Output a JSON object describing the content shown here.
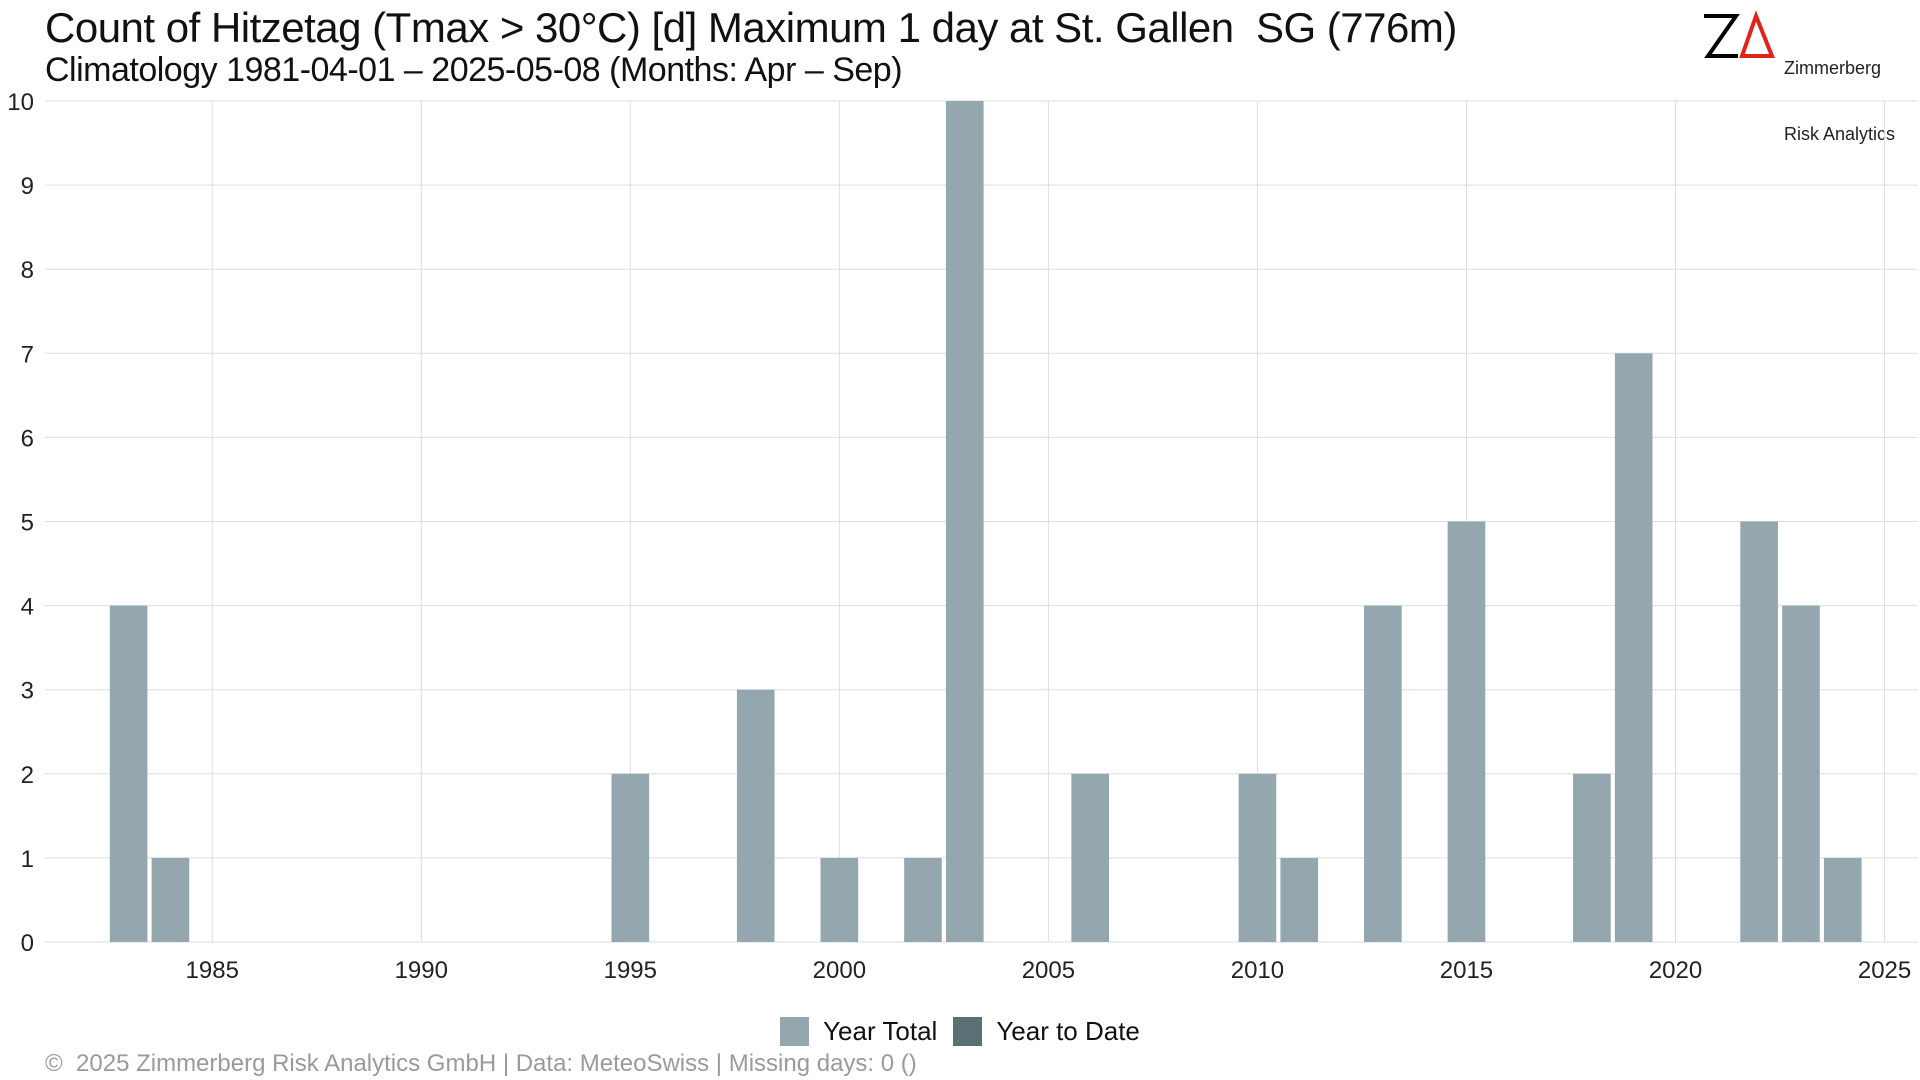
{
  "title": "Count of Hitzetag (Tmax > 30°C) [d] Maximum 1 day at St. Gallen  SG (776m)",
  "subtitle": "Climatology 1981-04-01 – 2025-05-08 (Months: Apr – Sep)",
  "logo": {
    "mark": "ZΔ",
    "line1": "Zimmerberg",
    "line2": "Risk Analytics"
  },
  "footer": "©  2025 Zimmerberg Risk Analytics GmbH | Data: MeteoSwiss | Missing days: 0 ()",
  "legend": [
    {
      "label": "Year Total",
      "color": "#94a7ae"
    },
    {
      "label": "Year to Date",
      "color": "#5b6f77"
    }
  ],
  "colors": {
    "year_total": "#94a7ae",
    "year_to_date": "#5b6f77",
    "grid": "#dddddd",
    "logo_z": "#000000",
    "logo_delta": "#e2231a"
  },
  "chart_data": {
    "type": "bar",
    "x": [
      1983,
      1984,
      1995,
      1998,
      2000,
      2002,
      2003,
      2006,
      2010,
      2011,
      2013,
      2015,
      2018,
      2019,
      2022,
      2023,
      2024
    ],
    "series": [
      {
        "name": "Year Total",
        "values": [
          4,
          1,
          2,
          3,
          1,
          1,
          10,
          2,
          2,
          1,
          4,
          5,
          2,
          7,
          5,
          4,
          1
        ]
      }
    ],
    "xticks": [
      "1985",
      "1990",
      "1995",
      "2000",
      "2005",
      "2010",
      "2015",
      "2020",
      "2025"
    ],
    "yticks": [
      "0",
      "1",
      "2",
      "3",
      "4",
      "5",
      "6",
      "7",
      "8",
      "9",
      "10"
    ],
    "xlim": [
      1981,
      2025.8
    ],
    "ylim": [
      0,
      10
    ],
    "xlabel": "",
    "ylabel": "",
    "grid": true,
    "legend_position": "bottom"
  }
}
